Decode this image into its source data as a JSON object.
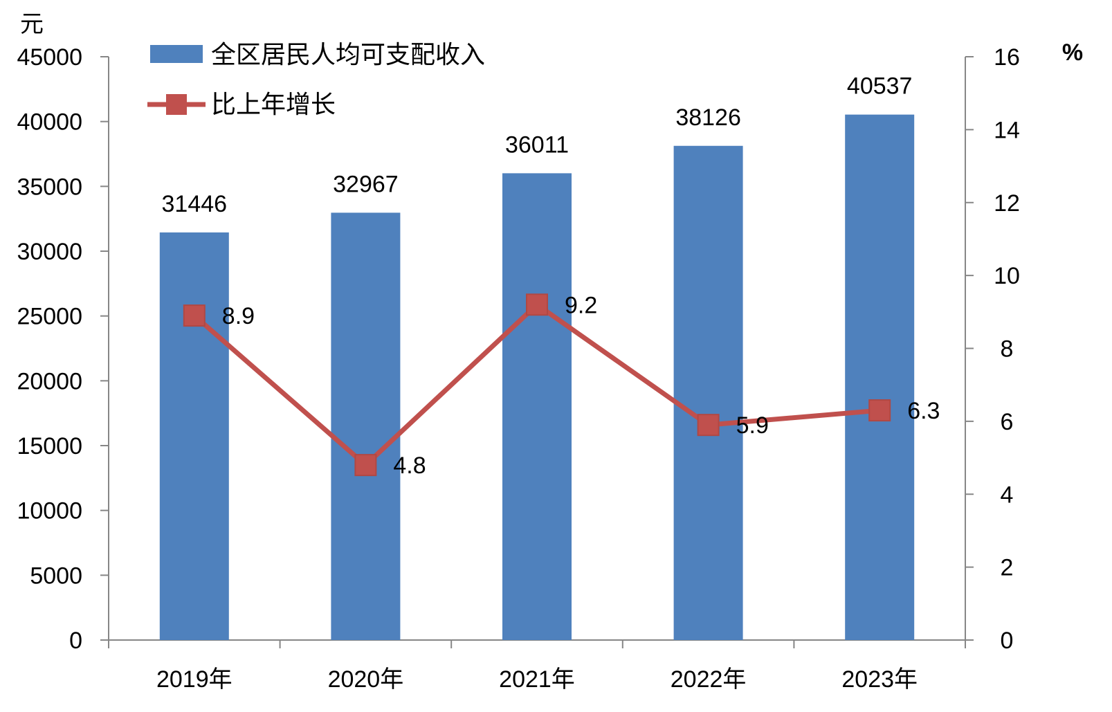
{
  "chart_data": {
    "type": "bar",
    "categories": [
      "2019年",
      "2020年",
      "2021年",
      "2022年",
      "2023年"
    ],
    "left_axis": {
      "unit": "元",
      "ylim": [
        0,
        45000
      ],
      "ticks": [
        0,
        5000,
        10000,
        15000,
        20000,
        25000,
        30000,
        35000,
        40000,
        45000
      ]
    },
    "right_axis": {
      "unit": "%",
      "ylim": [
        0,
        16
      ],
      "ticks": [
        0,
        2,
        4,
        6,
        8,
        10,
        12,
        14,
        16
      ]
    },
    "series": [
      {
        "name": "全区居民人均可支配收入",
        "type": "bar",
        "axis": "left",
        "color": "#4F81BD",
        "values": [
          31446,
          32967,
          36011,
          38126,
          40537
        ],
        "labels": [
          "31446",
          "32967",
          "36011",
          "38126",
          "40537"
        ]
      },
      {
        "name": "比上年增长",
        "type": "line",
        "axis": "right",
        "color": "#C0504D",
        "marker": "square",
        "values": [
          8.9,
          4.8,
          9.2,
          5.9,
          6.3
        ],
        "labels": [
          "8.9",
          "4.8",
          "9.2",
          "5.9",
          "6.3"
        ]
      }
    ],
    "legend": {
      "placement": "top-left"
    },
    "grid": false
  }
}
